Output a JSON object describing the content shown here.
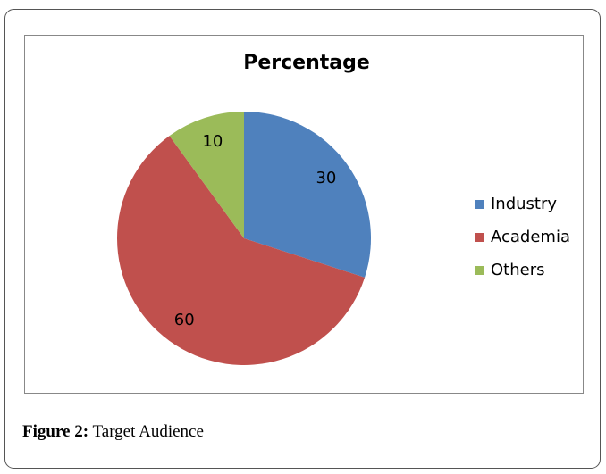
{
  "chart_data": {
    "type": "pie",
    "title": "Percentage",
    "categories": [
      "Industry",
      "Academia",
      "Others"
    ],
    "values": [
      30,
      60,
      10
    ],
    "colors": [
      "#4f81bd",
      "#c0504d",
      "#9bbb59"
    ],
    "legend": "right"
  },
  "figure": {
    "caption_label": "Figure 2:",
    "caption_text": "Target Audience"
  }
}
